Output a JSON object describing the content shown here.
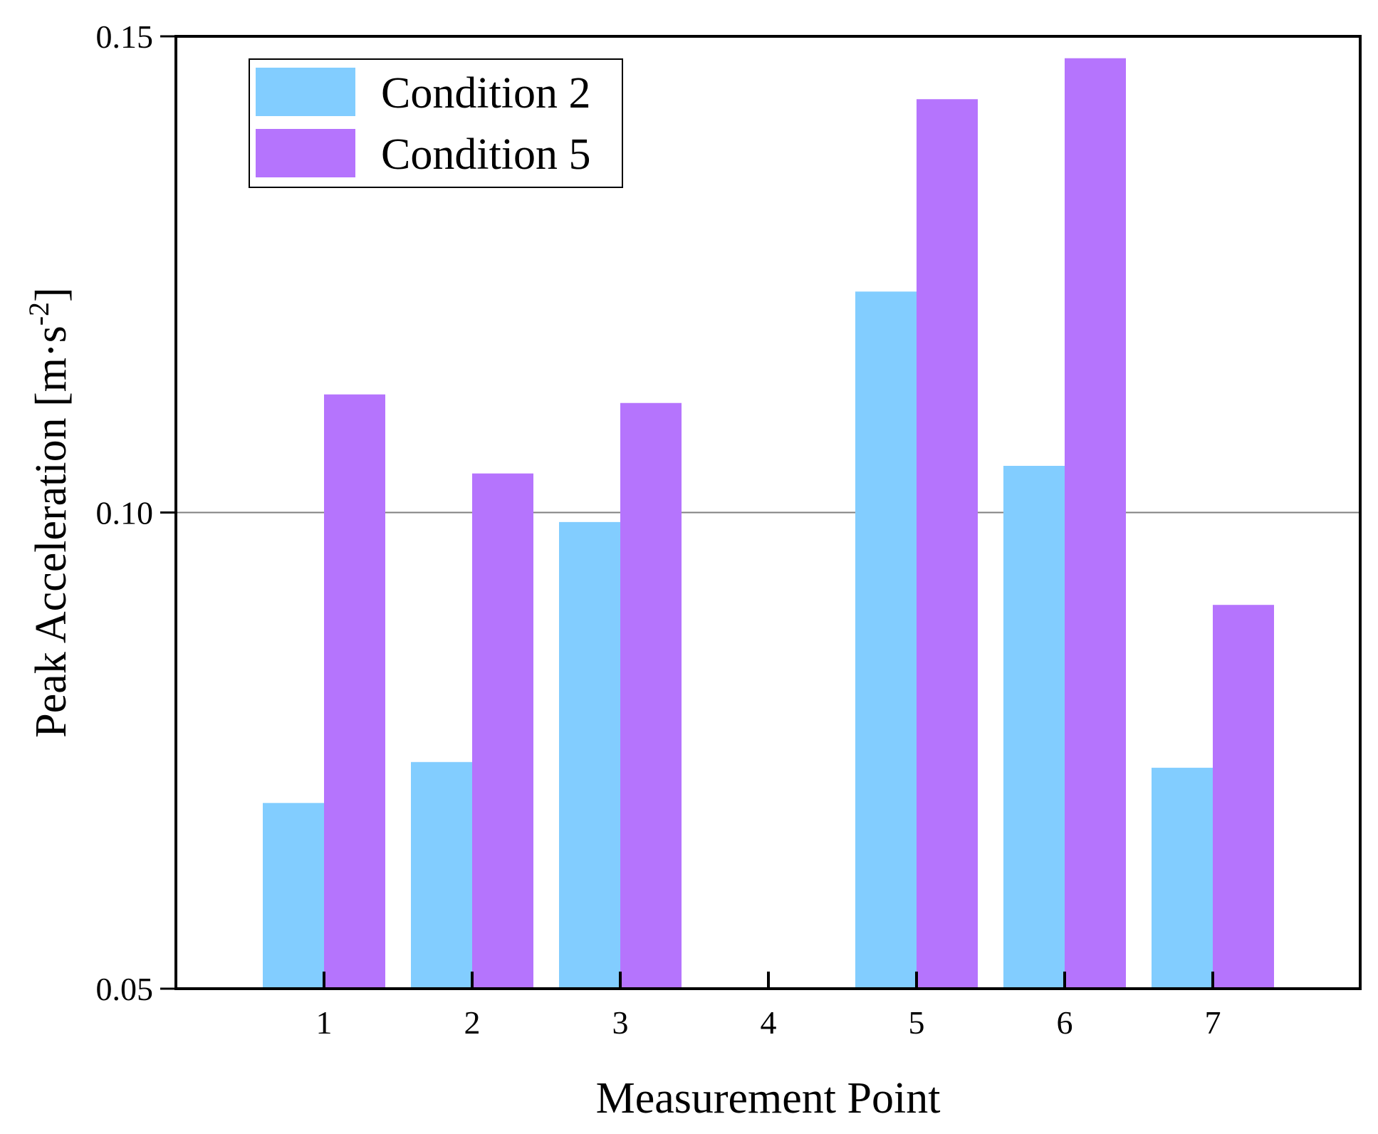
{
  "chart_data": {
    "type": "bar",
    "title": "",
    "xlabel": "Measurement Point",
    "ylabel": {
      "main": "Peak Acceleration [m·s",
      "exponent": "-2",
      "close": "]"
    },
    "categories": [
      "1",
      "2",
      "3",
      "4",
      "5",
      "6",
      "7"
    ],
    "series": [
      {
        "name": "Condition 2",
        "color": "#82cdff",
        "values": [
          0.0695,
          0.0738,
          0.099,
          null,
          0.1232,
          0.1049,
          0.0732
        ]
      },
      {
        "name": "Condition 5",
        "color": "#b574fd",
        "values": [
          0.1124,
          0.1041,
          0.1115,
          null,
          0.1434,
          0.1477,
          0.0903
        ]
      }
    ],
    "ylim": [
      0.05,
      0.15
    ],
    "yticks": [
      "0.05",
      "0.10",
      "0.15"
    ],
    "grid": "horizontal line at 0.10",
    "legend_position": "top-left"
  }
}
